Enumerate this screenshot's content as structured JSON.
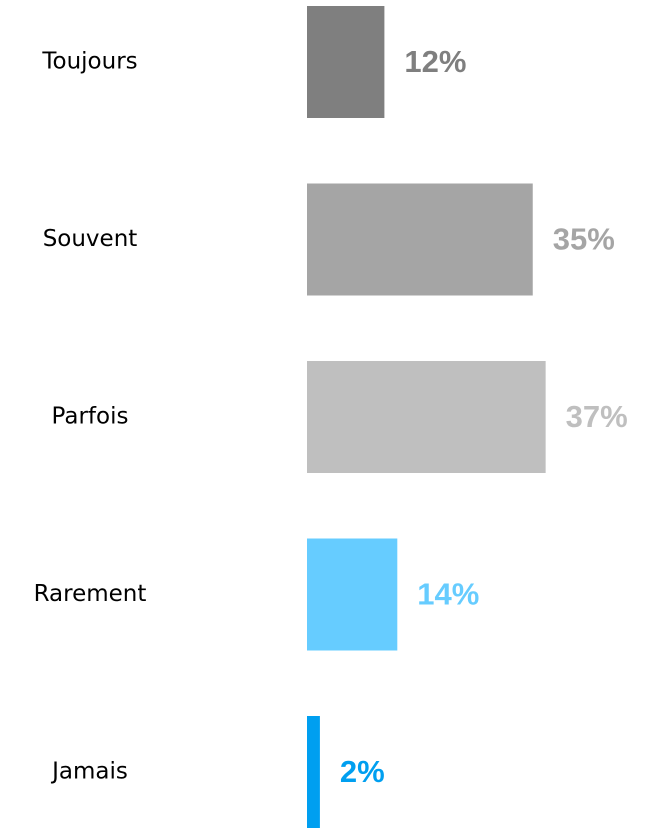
{
  "chart_data": {
    "type": "hbar",
    "categories": [
      "Toujours",
      "Souvent",
      "Parfois",
      "Rarement",
      "Jamais"
    ],
    "series": [
      {
        "values": [
          12,
          35,
          37,
          14,
          2
        ],
        "value_labels": [
          "12%",
          "35%",
          "37%",
          "14%",
          "2%"
        ],
        "colors": [
          "#7f7f7f",
          "#a5a5a5",
          "#bfbfbf",
          "#66ccff",
          "#009ff0"
        ]
      }
    ]
  }
}
